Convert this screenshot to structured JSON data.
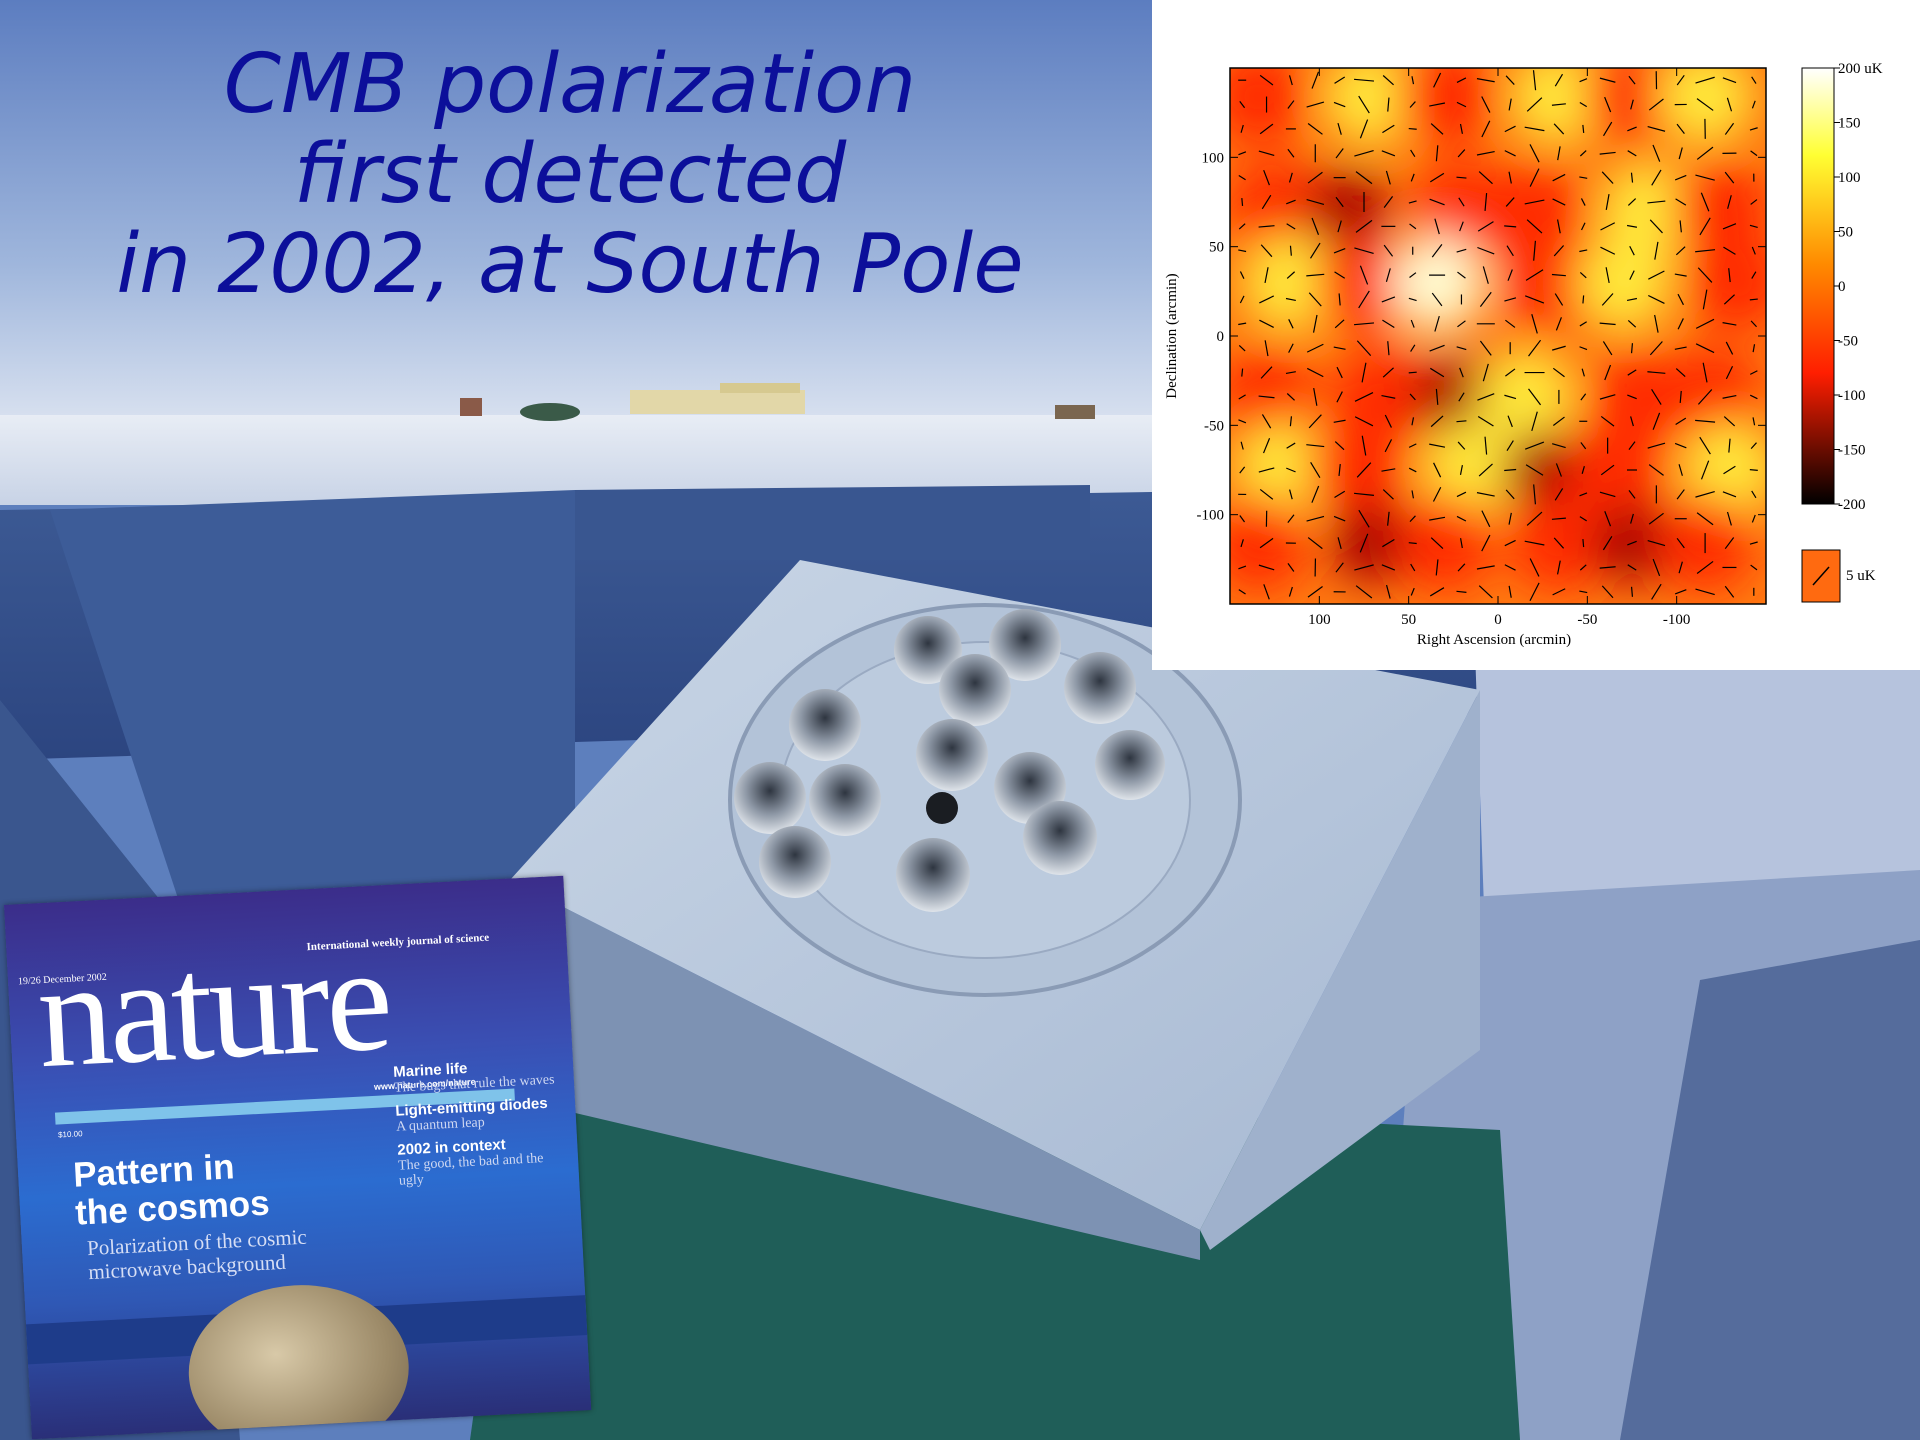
{
  "title": {
    "line1": "CMB polarization",
    "line2": "first detected",
    "line3": "in 2002, at South Pole"
  },
  "map": {
    "xlabel": "Right Ascension (arcmin)",
    "ylabel": "Declination (arcmin)",
    "xticks": [
      "100",
      "50",
      "0",
      "-50",
      "-100"
    ],
    "yticks": [
      "100",
      "50",
      "0",
      "-50",
      "-100"
    ],
    "colorbar_ticks": [
      "200 uK",
      "150",
      "100",
      "50",
      "0",
      "-50",
      "-100",
      "-150",
      "-200"
    ],
    "legend_label": "5 uK",
    "colors": [
      "#ffffff",
      "#ffff33",
      "#ff8a00",
      "#ff1e00",
      "#3a0000"
    ]
  },
  "cover": {
    "tagline": "International weekly journal of science",
    "date": "19/26 December 2002",
    "logo": "nature",
    "url": "www.nature.com/nature",
    "price": "$10.00",
    "headline_1": "Pattern in",
    "headline_2": "the cosmos",
    "subhead_1": "Polarization of the cosmic",
    "subhead_2": "microwave background",
    "side": [
      {
        "h": "Marine life",
        "s": "The bugs that rule the waves"
      },
      {
        "h": "Light-emitting diodes",
        "s": "A quantum leap"
      },
      {
        "h": "2002 in context",
        "s": "The good, the bad and the ugly"
      }
    ]
  }
}
